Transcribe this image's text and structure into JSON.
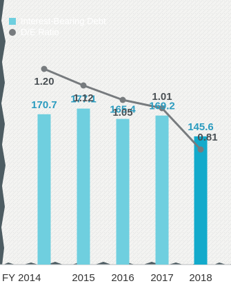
{
  "chart_data": {
    "type": "bar",
    "categories": [
      "FY 2014",
      "2015",
      "2016",
      "2017",
      "2018"
    ],
    "series": [
      {
        "name": "Interest-Bearing Debt",
        "type": "bar",
        "values": [
          170.7,
          177.1,
          165.4,
          169.2,
          145.6
        ],
        "value_labels": [
          "170.7",
          "177.1",
          "165.4",
          "169.2",
          "145.6"
        ],
        "color": "#6fcfdf",
        "highlight_color": "#12aacb",
        "highlight_index": 4,
        "label_color": "#2a9bbf"
      },
      {
        "name": "D/E Ratio",
        "type": "line",
        "values": [
          1.2,
          1.12,
          1.05,
          1.01,
          0.81
        ],
        "value_labels": [
          "1.20",
          "1.12",
          "1.05",
          "1.01",
          "0.81"
        ],
        "color": "#777b7e",
        "label_color": "#4a5054"
      }
    ],
    "title": "",
    "xlabel": "",
    "ylabel": "",
    "bar_ylim": [
      0,
      230
    ],
    "ratio_ylim": [
      0.4,
      1.4
    ],
    "legend_position": "top-left",
    "grid": false,
    "background_color": "#4d5c62",
    "plot_background_color": "#f4f4f2"
  }
}
